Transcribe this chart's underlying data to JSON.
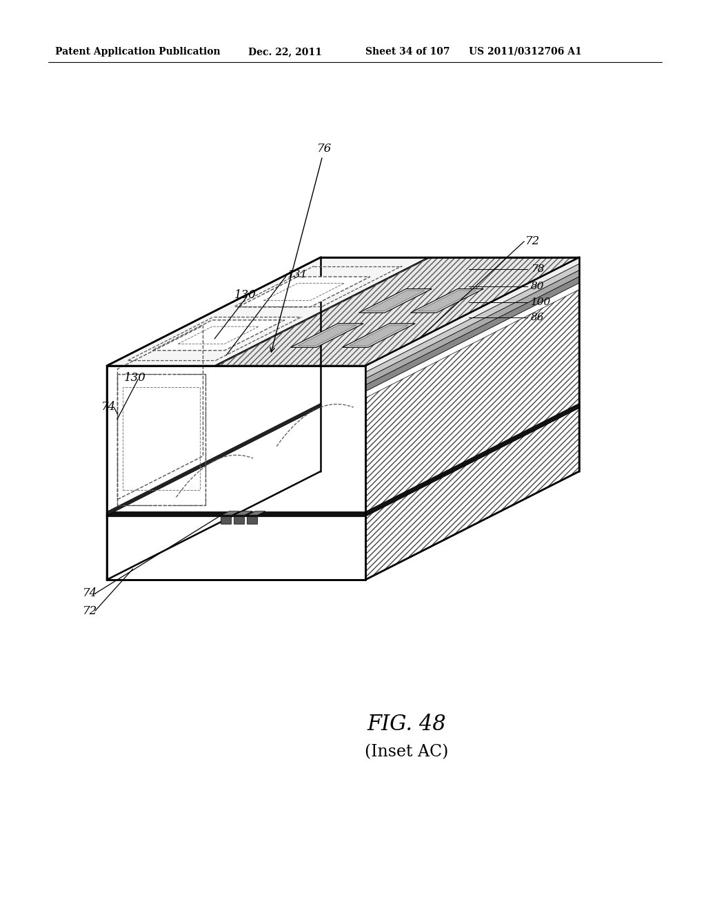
{
  "bg_color": "#ffffff",
  "header_text": "Patent Application Publication",
  "header_date": "Dec. 22, 2011",
  "header_sheet": "Sheet 34 of 107",
  "header_patent": "US 2011/0312706 A1",
  "fig_label": "FIG. 48",
  "fig_sublabel": "(Inset AC)",
  "line_color": "#000000",
  "hatch_color": "#555555"
}
